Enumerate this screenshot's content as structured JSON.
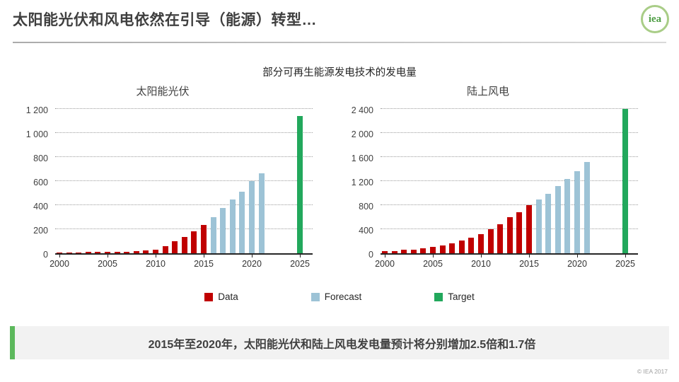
{
  "slide": {
    "title": "太阳能光伏和风电依然在引导（能源）转型…",
    "logo_text": "iea",
    "copyright": "© IEA 2017"
  },
  "section": {
    "title": "部分可再生能源发电技术的发电量"
  },
  "legend": {
    "items": [
      {
        "label": "Data",
        "color": "#c00000"
      },
      {
        "label": "Forecast",
        "color": "#9dc3d6"
      },
      {
        "label": "Target",
        "color": "#22a85c"
      }
    ]
  },
  "banner": {
    "text": "2015年至2020年，太阳能光伏和陆上风电发电量预计将分别增加2.5倍和1.7倍",
    "accent_color": "#5cb85c"
  },
  "chart_data": [
    {
      "type": "bar",
      "title": "太阳能光伏",
      "ylim": [
        0,
        1200
      ],
      "ytick_step": 200,
      "ytick_labels": [
        "0",
        "200",
        "400",
        "600",
        "800",
        "1 000",
        "1 200"
      ],
      "x_range": [
        2000,
        2025
      ],
      "xtick_labels": [
        "2000",
        "2005",
        "2010",
        "2015",
        "2020",
        "2025"
      ],
      "grid": "horizontal-dotted",
      "legend_position": "bottom",
      "series": [
        {
          "name": "Data",
          "legend": 0,
          "start_year": 2000,
          "values": [
            5,
            8,
            8,
            10,
            10,
            12,
            12,
            14,
            16,
            22,
            30,
            60,
            100,
            137,
            185,
            238
          ]
        },
        {
          "name": "Forecast",
          "legend": 1,
          "start_year": 2016,
          "values": [
            300,
            375,
            445,
            510,
            600,
            665
          ]
        },
        {
          "name": "Target",
          "legend": 2,
          "start_year": 2025,
          "values": [
            1140
          ]
        }
      ]
    },
    {
      "type": "bar",
      "title": "陆上风电",
      "ylim": [
        0,
        2400
      ],
      "ytick_step": 400,
      "ytick_labels": [
        "0",
        "400",
        "800",
        "1 200",
        "1 600",
        "2 000",
        "2 400"
      ],
      "x_range": [
        2000,
        2025
      ],
      "xtick_labels": [
        "2000",
        "2005",
        "2010",
        "2015",
        "2020",
        "2025"
      ],
      "grid": "horizontal-dotted",
      "legend_position": "bottom",
      "series": [
        {
          "name": "Data",
          "legend": 0,
          "start_year": 2000,
          "values": [
            35,
            40,
            55,
            60,
            80,
            105,
            130,
            165,
            210,
            255,
            315,
            400,
            485,
            605,
            680,
            800
          ]
        },
        {
          "name": "Forecast",
          "legend": 1,
          "start_year": 2016,
          "values": [
            895,
            990,
            1115,
            1235,
            1370,
            1520
          ]
        },
        {
          "name": "Target",
          "legend": 2,
          "start_year": 2025,
          "values": [
            2400
          ]
        }
      ]
    }
  ]
}
